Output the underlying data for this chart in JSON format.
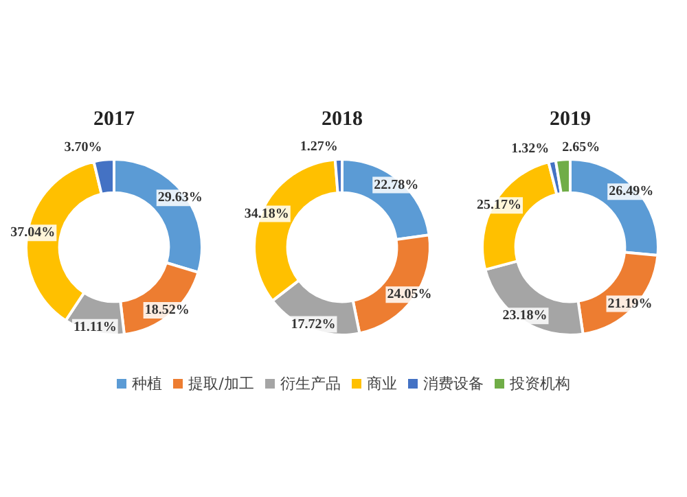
{
  "chart_data": [
    {
      "type": "donut",
      "title": "2017",
      "categories": [
        null,
        null,
        null,
        null,
        null
      ],
      "values": [
        29.63,
        18.52,
        11.11,
        37.04,
        3.7
      ],
      "colors": [
        "#5b9bd5",
        "#ed7d31",
        "#a5a5a5",
        "#ffc000",
        "#4472c4"
      ],
      "value_labels": [
        "29.63%",
        "18.52%",
        "11.11%",
        "37.04%",
        "3.70%"
      ]
    },
    {
      "type": "donut",
      "title": "2018",
      "categories": [
        null,
        null,
        null,
        null,
        null
      ],
      "values": [
        22.78,
        24.05,
        17.72,
        34.18,
        1.27
      ],
      "colors": [
        "#5b9bd5",
        "#ed7d31",
        "#a5a5a5",
        "#ffc000",
        "#4472c4"
      ],
      "value_labels": [
        "22.78%",
        "24.05%",
        "17.72%",
        "34.18%",
        "1.27%"
      ]
    },
    {
      "type": "donut",
      "title": "2019",
      "categories": [
        "种植",
        "提取/加工",
        "衍生产品",
        "商业",
        "消费设备",
        "投资机构"
      ],
      "values": [
        26.49,
        21.19,
        23.18,
        25.17,
        1.32,
        2.65
      ],
      "colors": [
        "#5b9bd5",
        "#ed7d31",
        "#a5a5a5",
        "#ffc000",
        "#4472c4",
        "#70ad47"
      ],
      "value_labels": [
        "26.49%",
        "21.19%",
        "23.18%",
        "25.17%",
        "1.32%",
        "2.65%"
      ],
      "legend": "bottom"
    }
  ]
}
